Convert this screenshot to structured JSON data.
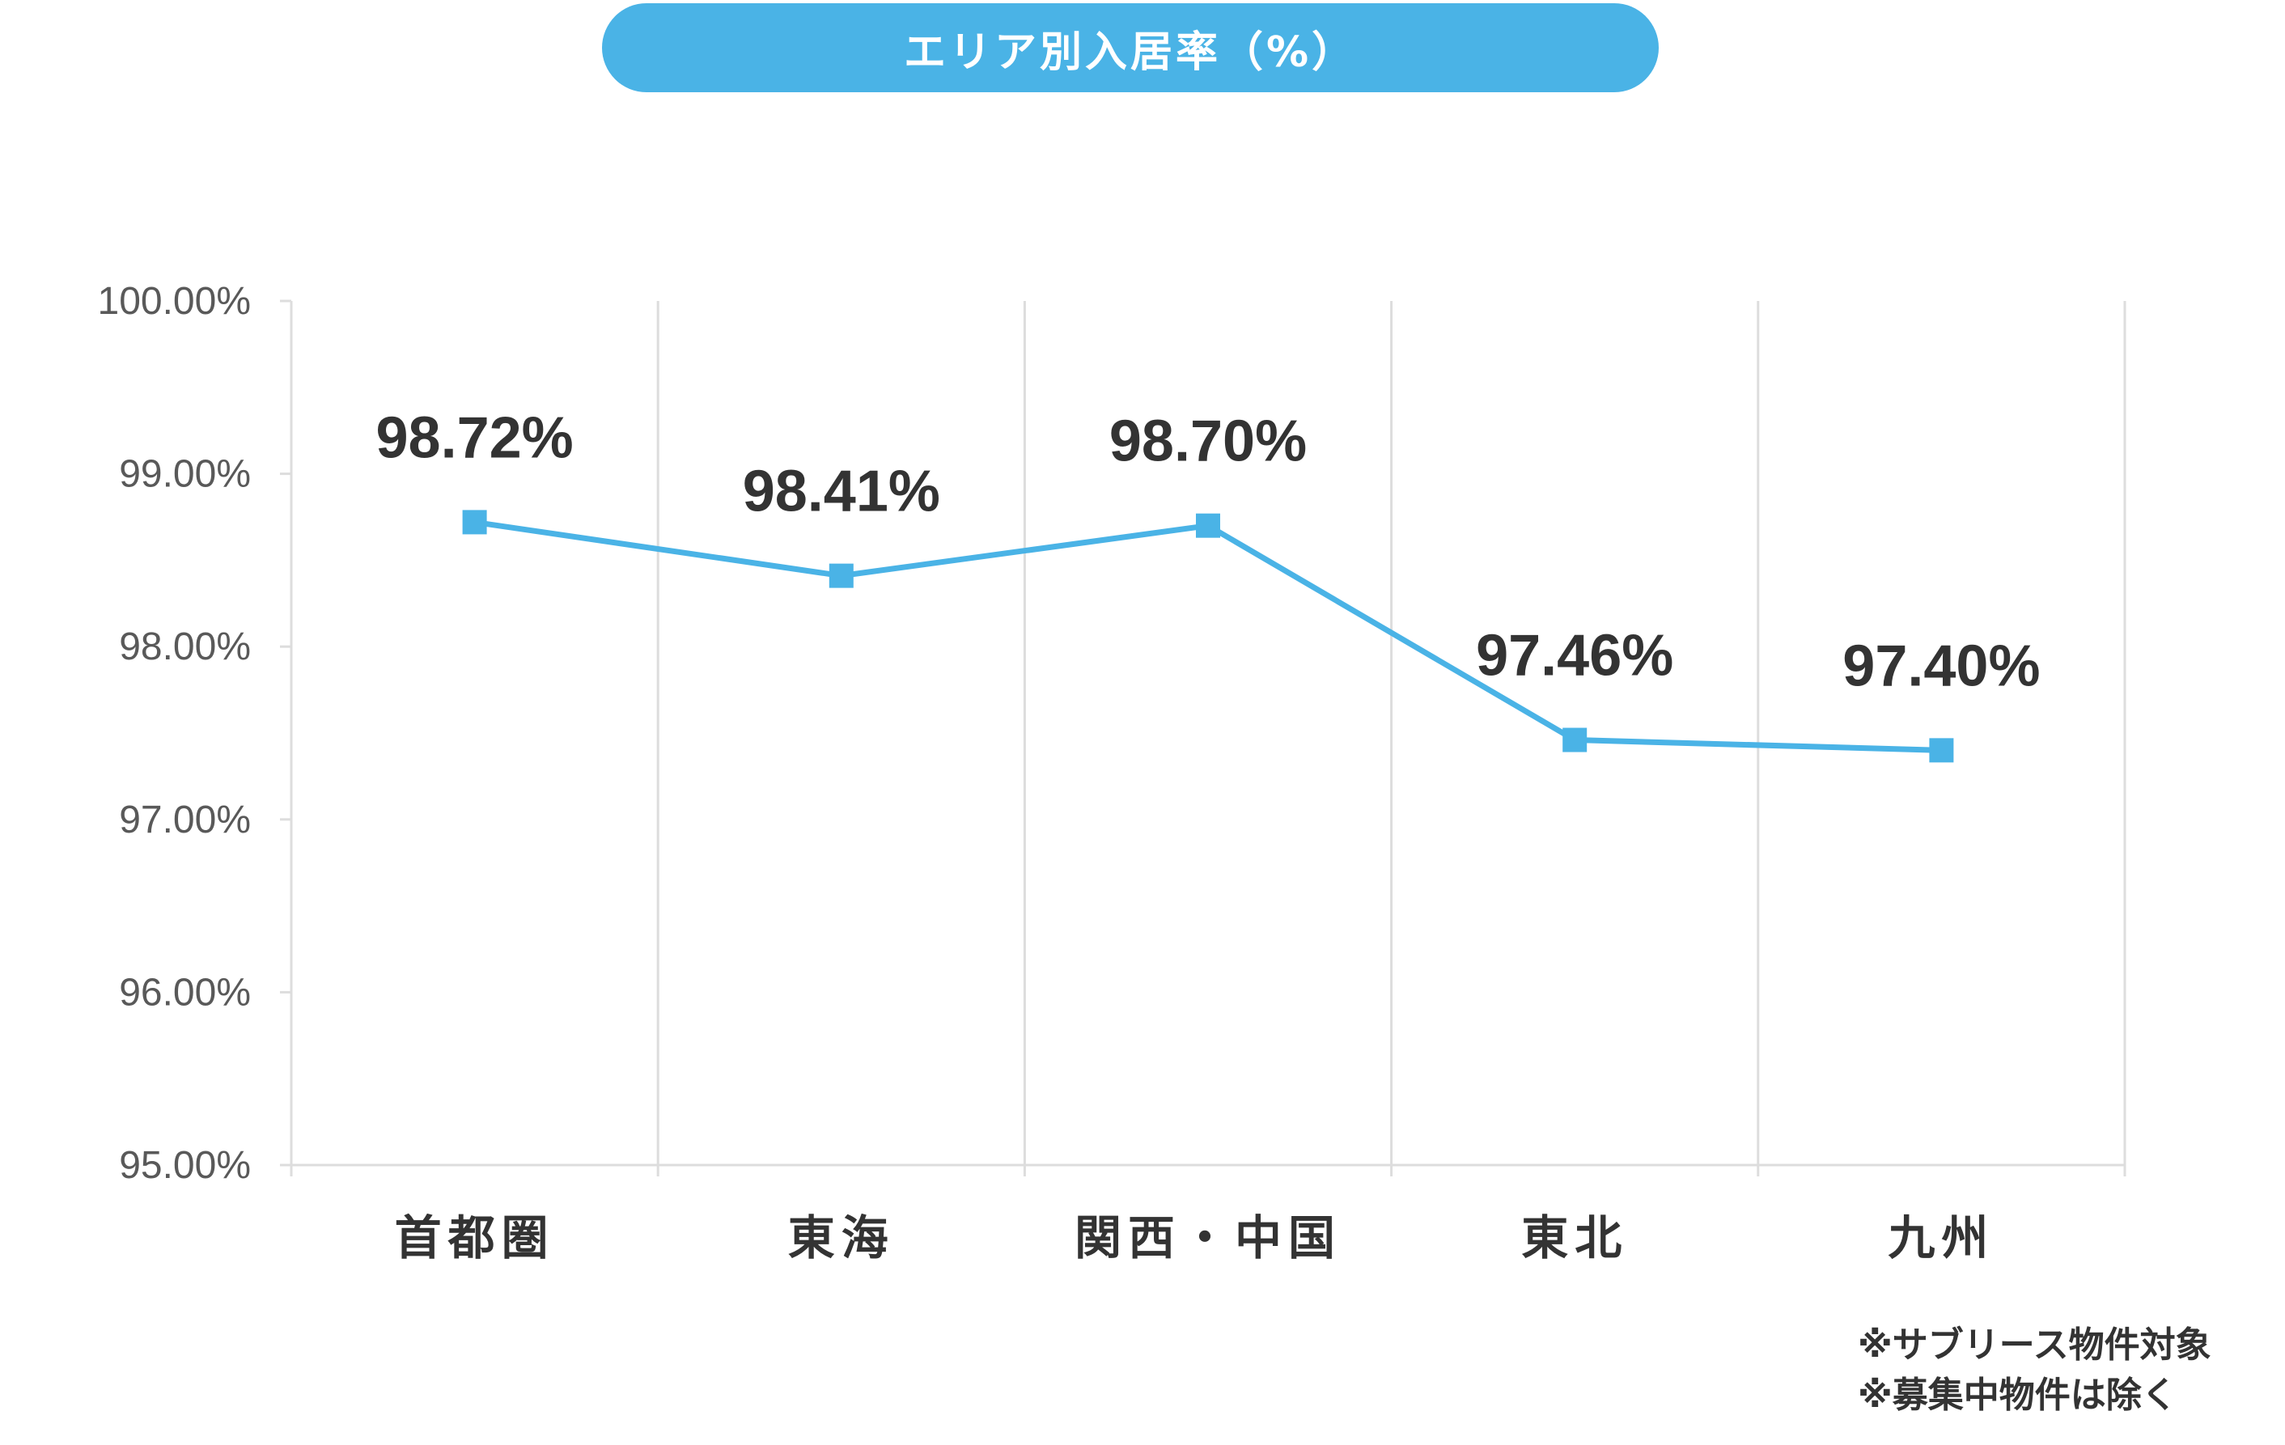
{
  "title": "エリア別入居率（%）",
  "colors": {
    "accent": "#4AB3E6",
    "grid": "#DDDDDD",
    "text": "#333333",
    "tick": "#595959"
  },
  "notes": [
    "※サブリース物件対象",
    "※募集中物件は除く"
  ],
  "chart_data": {
    "type": "line",
    "title": "エリア別入居率（%）",
    "xlabel": "",
    "ylabel": "",
    "categories": [
      "首都圏",
      "東海",
      "関西・中国",
      "東北",
      "九州"
    ],
    "series": [
      {
        "values": [
          98.72,
          98.41,
          98.7,
          97.46,
          97.4
        ],
        "labels": [
          "98.72%",
          "98.41%",
          "98.70%",
          "97.46%",
          "97.40%"
        ]
      }
    ],
    "ylim": [
      95,
      100
    ],
    "yticks": [
      95,
      96,
      97,
      98,
      99,
      100
    ],
    "ytick_labels": [
      "95.00%",
      "96.00%",
      "97.00%",
      "98.00%",
      "99.00%",
      "100.00%"
    ],
    "grid": "vertical",
    "marker": "square"
  }
}
